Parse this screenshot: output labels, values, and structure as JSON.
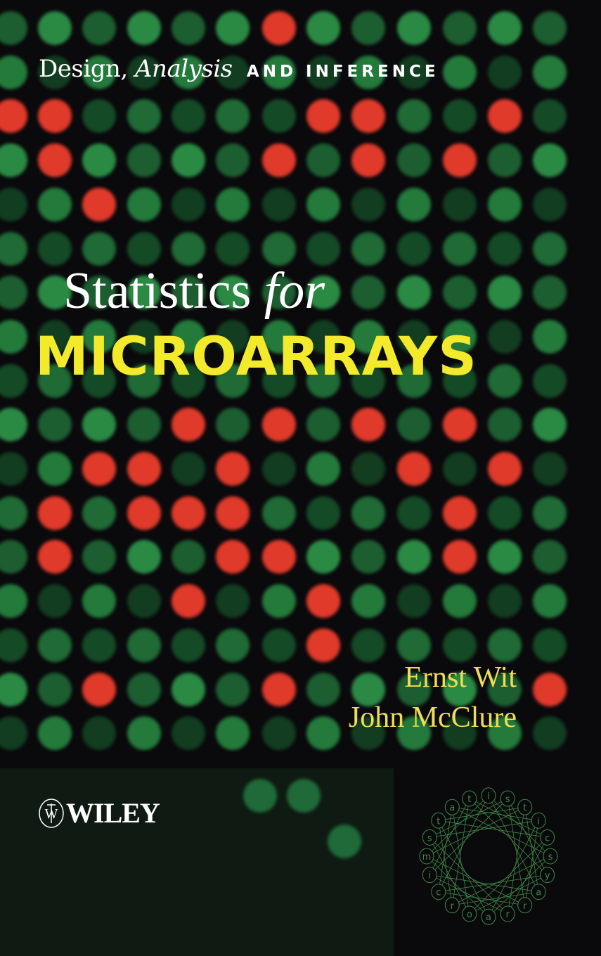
{
  "cover": {
    "subtitle_part1": "Design,",
    "subtitle_part2": "Analysis",
    "subtitle_part3": "AND INFERENCE",
    "title_part1": "Statistics",
    "title_part2": "for",
    "title_part3": "MICROARRAYS",
    "authors": [
      "Ernst Wit",
      "John McClure"
    ],
    "publisher": "WILEY",
    "emblem_letters": [
      "m",
      "i",
      "c",
      "r",
      "o",
      "a",
      "r",
      "r",
      "a",
      "y",
      "s",
      "c",
      "i",
      "t",
      "s",
      "i",
      "t",
      "a",
      "t",
      "s"
    ]
  },
  "colors": {
    "background": "#0a090c",
    "dot_green": "#1f6a35",
    "dot_red": "#e03a2a",
    "title_yellow": "#f2ea2a",
    "author_yellow": "#eedd55",
    "emblem_green": "#3e8a48",
    "publisher_panel": "#0f1a12"
  }
}
